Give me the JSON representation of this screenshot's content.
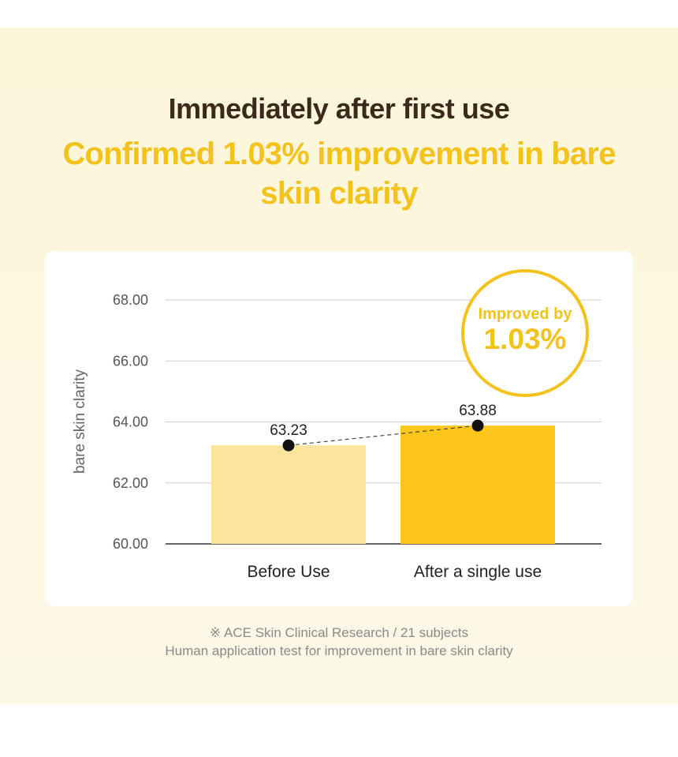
{
  "header": {
    "headline": "Immediately after first use",
    "subheadline": "Confirmed 1.03% improvement in bare skin clarity"
  },
  "badge": {
    "line1": "Improved by",
    "line2": "1.03%"
  },
  "chart_data": {
    "type": "bar",
    "categories": [
      "Before Use",
      "After a single use"
    ],
    "values": [
      63.23,
      63.88
    ],
    "value_labels": [
      "63.23",
      "63.88"
    ],
    "ylabel": "bare skin clarity",
    "ylim": [
      60,
      68
    ],
    "yticks": [
      "60.00",
      "62.00",
      "64.00",
      "66.00",
      "68.00"
    ],
    "grid": true,
    "bar_colors": [
      "#fde49d",
      "#fcc61a"
    ],
    "connector": "dashed line with dot markers"
  },
  "footnote": {
    "line1": "※ ACE Skin Clinical Research / 21 subjects",
    "line2": "Human application test for improvement in bare skin clarity"
  },
  "colors": {
    "accent": "#f4c21c",
    "title": "#3b2a1c",
    "background": "#fcf7e1"
  }
}
